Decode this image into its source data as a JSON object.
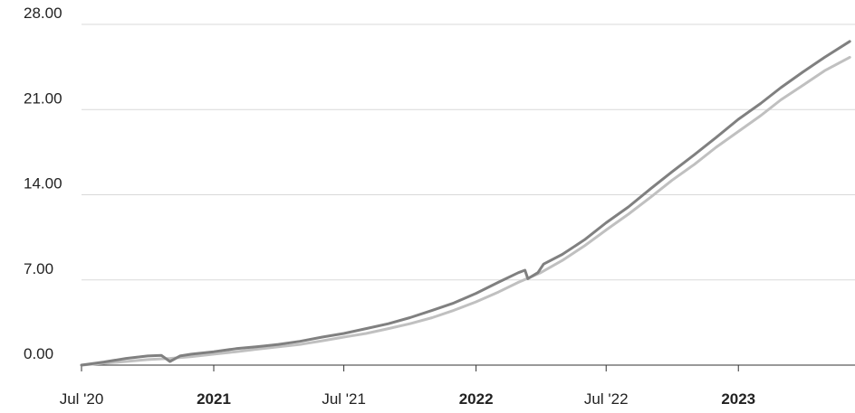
{
  "chart_data": {
    "type": "line",
    "title": "",
    "xlabel": "",
    "ylabel": "",
    "ylim": [
      0,
      28
    ],
    "yticks": [
      "0.00",
      "7.00",
      "14.00",
      "21.00",
      "28.00"
    ],
    "xticks": [
      {
        "label": "Jul '20",
        "date": "2020-07-01",
        "bold": false
      },
      {
        "label": "2021",
        "date": "2021-01-01",
        "bold": true
      },
      {
        "label": "Jul '21",
        "date": "2021-07-01",
        "bold": false
      },
      {
        "label": "2022",
        "date": "2022-01-01",
        "bold": true
      },
      {
        "label": "Jul '22",
        "date": "2022-07-01",
        "bold": false
      },
      {
        "label": "2023",
        "date": "2023-01-01",
        "bold": true
      }
    ],
    "grid": true,
    "legend": "none",
    "series": [
      {
        "color": "#808080",
        "points": [
          [
            "2020-07-01",
            0.0
          ],
          [
            "2020-08-01",
            0.25
          ],
          [
            "2020-09-01",
            0.55
          ],
          [
            "2020-10-01",
            0.75
          ],
          [
            "2020-10-20",
            0.8
          ],
          [
            "2020-11-01",
            0.3
          ],
          [
            "2020-11-15",
            0.75
          ],
          [
            "2020-12-01",
            0.9
          ],
          [
            "2021-01-01",
            1.1
          ],
          [
            "2021-02-01",
            1.35
          ],
          [
            "2021-03-01",
            1.5
          ],
          [
            "2021-04-01",
            1.7
          ],
          [
            "2021-05-01",
            1.95
          ],
          [
            "2021-06-01",
            2.3
          ],
          [
            "2021-07-01",
            2.6
          ],
          [
            "2021-08-01",
            3.0
          ],
          [
            "2021-09-01",
            3.4
          ],
          [
            "2021-10-01",
            3.9
          ],
          [
            "2021-11-01",
            4.5
          ],
          [
            "2021-12-01",
            5.1
          ],
          [
            "2022-01-01",
            5.9
          ],
          [
            "2022-02-01",
            6.8
          ],
          [
            "2022-03-01",
            7.6
          ],
          [
            "2022-03-10",
            7.8
          ],
          [
            "2022-03-14",
            7.1
          ],
          [
            "2022-03-28",
            7.6
          ],
          [
            "2022-04-05",
            8.3
          ],
          [
            "2022-05-01",
            9.1
          ],
          [
            "2022-06-01",
            10.3
          ],
          [
            "2022-07-01",
            11.7
          ],
          [
            "2022-08-01",
            13.0
          ],
          [
            "2022-09-01",
            14.5
          ],
          [
            "2022-10-01",
            15.9
          ],
          [
            "2022-11-01",
            17.3
          ],
          [
            "2022-12-01",
            18.7
          ],
          [
            "2023-01-01",
            20.2
          ],
          [
            "2023-02-01",
            21.5
          ],
          [
            "2023-03-01",
            22.8
          ],
          [
            "2023-04-01",
            24.1
          ],
          [
            "2023-05-01",
            25.3
          ],
          [
            "2023-06-05",
            26.6
          ]
        ]
      },
      {
        "color": "#c0c0c0",
        "points": [
          [
            "2020-07-01",
            0.0
          ],
          [
            "2020-08-01",
            0.15
          ],
          [
            "2020-09-01",
            0.3
          ],
          [
            "2020-10-01",
            0.45
          ],
          [
            "2020-11-01",
            0.55
          ],
          [
            "2020-12-01",
            0.7
          ],
          [
            "2021-01-01",
            0.9
          ],
          [
            "2021-02-01",
            1.1
          ],
          [
            "2021-03-01",
            1.3
          ],
          [
            "2021-04-01",
            1.5
          ],
          [
            "2021-05-01",
            1.7
          ],
          [
            "2021-06-01",
            2.0
          ],
          [
            "2021-07-01",
            2.3
          ],
          [
            "2021-08-01",
            2.6
          ],
          [
            "2021-09-01",
            3.0
          ],
          [
            "2021-10-01",
            3.4
          ],
          [
            "2021-11-01",
            3.9
          ],
          [
            "2021-12-01",
            4.5
          ],
          [
            "2022-01-01",
            5.2
          ],
          [
            "2022-02-01",
            6.0
          ],
          [
            "2022-03-01",
            6.8
          ],
          [
            "2022-04-01",
            7.6
          ],
          [
            "2022-05-01",
            8.6
          ],
          [
            "2022-06-01",
            9.8
          ],
          [
            "2022-07-01",
            11.1
          ],
          [
            "2022-08-01",
            12.4
          ],
          [
            "2022-09-01",
            13.8
          ],
          [
            "2022-10-01",
            15.2
          ],
          [
            "2022-11-01",
            16.5
          ],
          [
            "2022-12-01",
            17.9
          ],
          [
            "2023-01-01",
            19.2
          ],
          [
            "2023-02-01",
            20.5
          ],
          [
            "2023-03-01",
            21.8
          ],
          [
            "2023-04-01",
            23.0
          ],
          [
            "2023-05-01",
            24.2
          ],
          [
            "2023-06-05",
            25.3
          ]
        ]
      }
    ]
  }
}
